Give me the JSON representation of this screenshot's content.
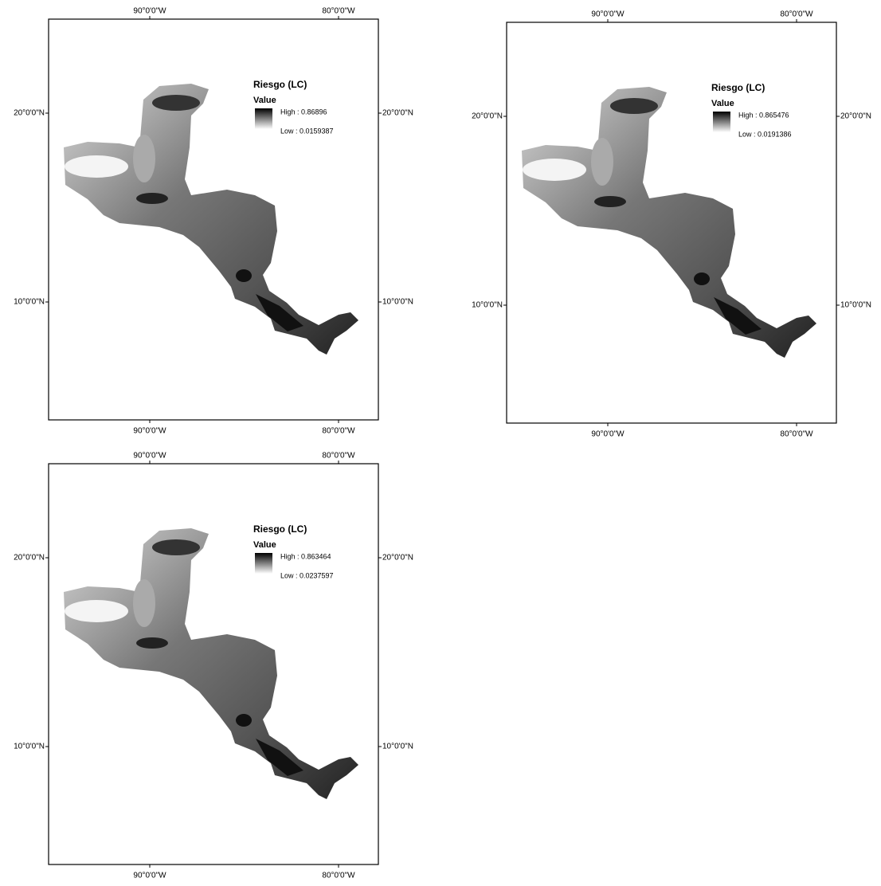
{
  "graticule": {
    "longitudes": [
      "90°0'0\"W",
      "80°0'0\"W"
    ],
    "latitudes": [
      "20°0'0\"N",
      "10°0'0\"N"
    ]
  },
  "panels": [
    {
      "legend": {
        "title": "Riesgo (LC)",
        "subtitle": "Value",
        "high": "High : 0.86896",
        "low": "Low : 0.0159387"
      }
    },
    {
      "legend": {
        "title": "Riesgo (LC)",
        "subtitle": "Value",
        "high": "High : 0.865476",
        "low": "Low : 0.0191386"
      }
    },
    {
      "legend": {
        "title": "Riesgo (LC)",
        "subtitle": "Value",
        "high": "High : 0.863464",
        "low": "Low : 0.0237597"
      }
    }
  ]
}
